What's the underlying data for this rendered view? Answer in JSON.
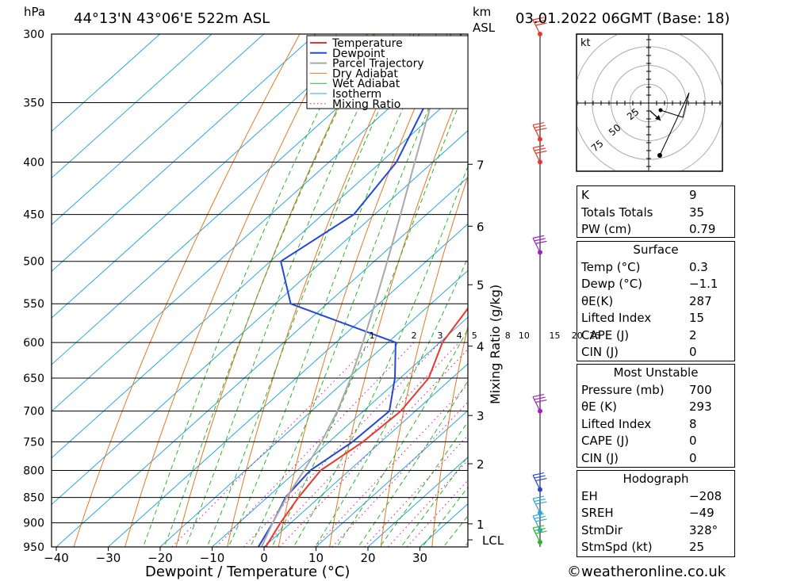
{
  "header": {
    "location": "44°13'N  43°06'E  522m  ASL",
    "datetime": "03.01.2022  06GMT  (Base: 18)",
    "hpa_unit": "hPa",
    "km_unit": "km",
    "asl_unit": "ASL"
  },
  "chart_data": {
    "type": "line",
    "title": "",
    "xlabel": "Dewpoint / Temperature (°C)",
    "ylabel": "hPa",
    "right_label": "Mixing Ratio (g/kg)",
    "xlim": [
      -40,
      35
    ],
    "ylim": [
      950,
      300
    ],
    "pressure_ticks": [
      300,
      350,
      400,
      450,
      500,
      550,
      600,
      650,
      700,
      750,
      800,
      850,
      900,
      950
    ],
    "temp_ticks": [
      -40,
      -30,
      -20,
      -10,
      0,
      10,
      20,
      30
    ],
    "km_ticks": [
      {
        "label": "1",
        "p": 902
      },
      {
        "label": "2",
        "p": 788
      },
      {
        "label": "3",
        "p": 707
      },
      {
        "label": "4",
        "p": 605
      },
      {
        "label": "5",
        "p": 527
      },
      {
        "label": "6",
        "p": 462
      },
      {
        "label": "7",
        "p": 402
      }
    ],
    "lcl": {
      "label": "LCL",
      "p": 935
    },
    "mixing_ratio_labels": [
      "1",
      "2",
      "3",
      "4",
      "5",
      "8",
      "10",
      "15",
      "20",
      "25"
    ],
    "legend": [
      "Temperature",
      "Dewpoint",
      "Parcel Trajectory",
      "Dry Adiabat",
      "Wet Adiabat",
      "Isotherm",
      "Mixing Ratio"
    ],
    "colors": {
      "temperature": "#e8382f",
      "dewpoint": "#2448d6",
      "parcel": "#a9a9a9",
      "dry_adiabat": "#e07a22",
      "wet_adiabat": "#2bb52b",
      "isotherm": "#2aa6e0",
      "mixing_ratio": "#d1139e"
    },
    "series": [
      {
        "name": "Temperature",
        "points": [
          [
            950,
            0.3
          ],
          [
            900,
            -2.0
          ],
          [
            850,
            -4.0
          ],
          [
            800,
            -5.5
          ],
          [
            750,
            -3.5
          ],
          [
            700,
            -2.8
          ],
          [
            650,
            -4.5
          ],
          [
            600,
            -9.5
          ],
          [
            550,
            -12.2
          ],
          [
            500,
            -14.0
          ],
          [
            450,
            -17.8
          ],
          [
            400,
            -24.5
          ],
          [
            350,
            -33.5
          ],
          [
            300,
            -43.0
          ]
        ]
      },
      {
        "name": "Dewpoint",
        "points": [
          [
            950,
            -1.1
          ],
          [
            900,
            -3.5
          ],
          [
            850,
            -6.5
          ],
          [
            800,
            -7.5
          ],
          [
            750,
            -5.5
          ],
          [
            700,
            -5.0
          ],
          [
            650,
            -11.0
          ],
          [
            600,
            -18.5
          ],
          [
            550,
            -47.0
          ],
          [
            500,
            -58.0
          ],
          [
            450,
            -54.0
          ],
          [
            400,
            -57.0
          ],
          [
            350,
            -64.0
          ],
          [
            300,
            -72.0
          ]
        ]
      },
      {
        "name": "Parcel Trajectory",
        "points": [
          [
            950,
            -0.5
          ],
          [
            900,
            -3.5
          ],
          [
            850,
            -6.3
          ],
          [
            800,
            -8.7
          ],
          [
            750,
            -11.5
          ],
          [
            700,
            -15.0
          ],
          [
            650,
            -19.5
          ],
          [
            600,
            -24.8
          ],
          [
            550,
            -30.8
          ],
          [
            500,
            -37.5
          ],
          [
            450,
            -45.0
          ],
          [
            400,
            -53.5
          ],
          [
            350,
            -63.0
          ],
          [
            300,
            -74.0
          ]
        ]
      }
    ],
    "wind_barbs": [
      {
        "p": 300,
        "color": "#e8382f"
      },
      {
        "p": 380,
        "color": "#e8382f"
      },
      {
        "p": 400,
        "color": "#e8382f"
      },
      {
        "p": 490,
        "color": "#a020c8"
      },
      {
        "p": 700,
        "color": "#a020c8"
      },
      {
        "p": 835,
        "color": "#2448d6"
      },
      {
        "p": 880,
        "color": "#2aa6e0"
      },
      {
        "p": 915,
        "color": "#2aa6e0"
      },
      {
        "p": 940,
        "color": "#2bb52b"
      }
    ]
  },
  "hodograph": {
    "unit": "kt",
    "ring_labels": [
      "25",
      "50",
      "75"
    ]
  },
  "indices": [
    {
      "label": "K",
      "value": "9"
    },
    {
      "label": "Totals Totals",
      "value": "35"
    },
    {
      "label": "PW (cm)",
      "value": "0.79"
    }
  ],
  "surface": {
    "title": "Surface",
    "rows": [
      {
        "label": "Temp (°C)",
        "value": "0.3"
      },
      {
        "label": "Dewp (°C)",
        "value": "−1.1"
      },
      {
        "label": "θE(K)",
        "value": "287"
      },
      {
        "label": "Lifted Index",
        "value": "15"
      },
      {
        "label": "CAPE (J)",
        "value": "2"
      },
      {
        "label": "CIN (J)",
        "value": "0"
      }
    ]
  },
  "most_unstable": {
    "title": "Most Unstable",
    "rows": [
      {
        "label": "Pressure (mb)",
        "value": "700"
      },
      {
        "label": "θE (K)",
        "value": "293"
      },
      {
        "label": "Lifted Index",
        "value": "8"
      },
      {
        "label": "CAPE (J)",
        "value": "0"
      },
      {
        "label": "CIN (J)",
        "value": "0"
      }
    ]
  },
  "hodograph_stats": {
    "title": "Hodograph",
    "rows": [
      {
        "label": "EH",
        "value": "−208"
      },
      {
        "label": "SREH",
        "value": "−49"
      },
      {
        "label": "StmDir",
        "value": "328°"
      },
      {
        "label": "StmSpd (kt)",
        "value": "25"
      }
    ]
  },
  "footer": {
    "copyright": "©weatheronline.co.uk"
  }
}
